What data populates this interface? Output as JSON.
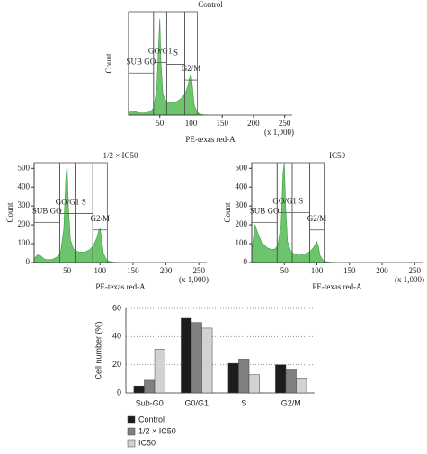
{
  "chart_data": [
    {
      "type": "area",
      "title": "Control",
      "x_label": "PE-texas red-A",
      "x_unit_note": "(x 1,000)",
      "y_label": "Count",
      "x": [
        0,
        5,
        10,
        15,
        20,
        25,
        30,
        35,
        40,
        45,
        48,
        50,
        52,
        55,
        60,
        65,
        70,
        75,
        80,
        85,
        90,
        95,
        98,
        100,
        102,
        105,
        110,
        115,
        120,
        130
      ],
      "values": [
        10,
        25,
        20,
        15,
        12,
        12,
        15,
        20,
        40,
        150,
        400,
        560,
        300,
        120,
        80,
        70,
        70,
        75,
        85,
        100,
        120,
        170,
        220,
        240,
        180,
        60,
        15,
        5,
        2,
        0
      ],
      "color": "#6cc46c",
      "xlim": [
        0,
        262
      ],
      "ylim": [
        0,
        600
      ],
      "xticks": [
        50,
        100,
        150,
        200,
        250
      ],
      "gates": [
        {
          "label": "SUB GO",
          "range": [
            0,
            40
          ],
          "level": 244
        },
        {
          "label": "GO/G1",
          "range": [
            40,
            61
          ],
          "level": 305
        },
        {
          "label": "S",
          "range": [
            61,
            90
          ],
          "level": 295
        },
        {
          "label": "G2/M",
          "range": [
            90,
            110
          ],
          "level": 203
        }
      ]
    },
    {
      "type": "area",
      "title": "1/2 × IC50",
      "x_label": "PE-texas red-A",
      "x_unit_note": "(x 1,000)",
      "y_label": "Count",
      "x": [
        0,
        5,
        10,
        15,
        20,
        25,
        30,
        35,
        40,
        45,
        48,
        50,
        52,
        55,
        60,
        65,
        70,
        75,
        80,
        85,
        90,
        95,
        98,
        100,
        102,
        105,
        110,
        115,
        120,
        130
      ],
      "values": [
        20,
        40,
        35,
        20,
        15,
        15,
        20,
        30,
        50,
        180,
        450,
        520,
        300,
        120,
        70,
        60,
        55,
        55,
        60,
        70,
        90,
        130,
        170,
        180,
        140,
        50,
        12,
        5,
        2,
        0
      ],
      "color": "#6cc46c",
      "xlim": [
        0,
        262
      ],
      "ylim": [
        0,
        530
      ],
      "xticks": [
        50,
        100,
        150,
        200,
        250
      ],
      "yticks": [
        0,
        100,
        200,
        300,
        400,
        500
      ],
      "gates": [
        {
          "label": "SUB GO",
          "range": [
            0,
            39
          ],
          "level": 212
        },
        {
          "label": "GO/G1",
          "range": [
            39,
            62
          ],
          "level": 260
        },
        {
          "label": "S",
          "range": [
            62,
            89
          ],
          "level": 260
        },
        {
          "label": "G2/M",
          "range": [
            89,
            111
          ],
          "level": 173
        }
      ]
    },
    {
      "type": "area",
      "title": "IC50",
      "x_label": "PE-texas red-A",
      "x_unit_note": "(x 1,000)",
      "y_label": "Count",
      "x": [
        0,
        5,
        10,
        15,
        20,
        25,
        30,
        35,
        40,
        45,
        48,
        50,
        52,
        55,
        60,
        65,
        70,
        75,
        80,
        85,
        90,
        95,
        98,
        100,
        102,
        105,
        110,
        115,
        120,
        130
      ],
      "values": [
        60,
        200,
        150,
        110,
        90,
        75,
        70,
        70,
        90,
        200,
        480,
        530,
        300,
        110,
        60,
        45,
        40,
        40,
        45,
        50,
        60,
        80,
        100,
        110,
        90,
        35,
        10,
        4,
        2,
        0
      ],
      "color": "#6cc46c",
      "xlim": [
        0,
        262
      ],
      "ylim": [
        0,
        530
      ],
      "xticks": [
        50,
        100,
        150,
        200,
        250
      ],
      "yticks": [
        0,
        100,
        200,
        300,
        400,
        500
      ],
      "gates": [
        {
          "label": "SUB GO",
          "range": [
            0,
            39
          ],
          "level": 212
        },
        {
          "label": "GO/G1",
          "range": [
            39,
            62
          ],
          "level": 265
        },
        {
          "label": "S",
          "range": [
            62,
            89
          ],
          "level": 265
        },
        {
          "label": "G2/M",
          "range": [
            89,
            111
          ],
          "level": 173
        }
      ]
    },
    {
      "type": "bar",
      "y_label": "Cell number (%)",
      "categories": [
        "Sub-G0",
        "G0/G1",
        "S",
        "G2/M"
      ],
      "series": [
        {
          "name": "Control",
          "color": "#1c1c1c",
          "values": [
            5,
            53,
            21,
            20
          ]
        },
        {
          "name": "1/2 × IC50",
          "color": "#808080",
          "values": [
            9,
            50,
            24,
            17
          ]
        },
        {
          "name": "IC50",
          "color": "#d2d2d2",
          "values": [
            31,
            46,
            13,
            10
          ]
        }
      ],
      "ylim": [
        0,
        60
      ],
      "yticks": [
        0,
        20,
        40,
        60
      ],
      "grid": true
    }
  ]
}
